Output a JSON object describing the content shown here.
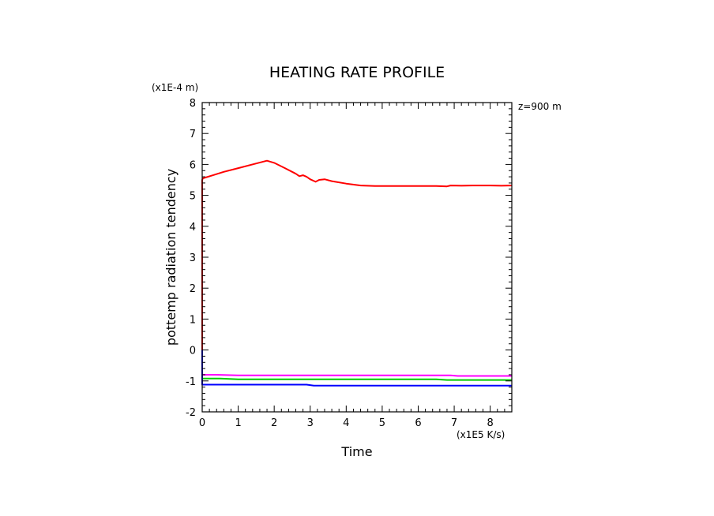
{
  "chart_data": {
    "type": "line",
    "title": "HEATING RATE PROFILE",
    "xlabel": "Time",
    "ylabel": "pottemp radiation tendency",
    "x_unit_label": "(x1E5 K/s)",
    "y_unit_label": "(x1E-4 m)",
    "annotation": "z=900 m",
    "xlim": [
      0,
      8.6
    ],
    "ylim": [
      -2,
      8
    ],
    "xticks": [
      0,
      1,
      2,
      3,
      4,
      5,
      6,
      7,
      8
    ],
    "yticks": [
      -2,
      -1,
      0,
      1,
      2,
      3,
      4,
      5,
      6,
      7,
      8
    ],
    "series": [
      {
        "name": "red",
        "color": "#ff0000",
        "x": [
          0,
          0,
          0.02,
          0.3,
          0.6,
          1.0,
          1.5,
          1.8,
          2.0,
          2.3,
          2.6,
          2.7,
          2.8,
          2.9,
          3.0,
          3.15,
          3.25,
          3.4,
          3.6,
          4.0,
          4.4,
          4.8,
          5.5,
          6.0,
          6.5,
          6.8,
          6.9,
          7.2,
          7.5,
          8.0,
          8.3,
          8.6
        ],
        "y": [
          -0.6,
          5.5,
          5.55,
          5.65,
          5.76,
          5.88,
          6.03,
          6.12,
          6.05,
          5.88,
          5.7,
          5.62,
          5.65,
          5.6,
          5.52,
          5.44,
          5.5,
          5.52,
          5.46,
          5.38,
          5.32,
          5.3,
          5.3,
          5.3,
          5.3,
          5.29,
          5.32,
          5.31,
          5.32,
          5.32,
          5.31,
          5.32
        ]
      },
      {
        "name": "magenta",
        "color": "#ff00ff",
        "x": [
          0,
          0.4,
          1.0,
          2.0,
          3.0,
          4.0,
          5.0,
          6.0,
          6.9,
          7.1,
          8.0,
          8.6
        ],
        "y": [
          -0.8,
          -0.8,
          -0.82,
          -0.82,
          -0.82,
          -0.82,
          -0.82,
          -0.82,
          -0.82,
          -0.84,
          -0.84,
          -0.84
        ]
      },
      {
        "name": "green",
        "color": "#00cc00",
        "x": [
          0,
          0.5,
          1.0,
          2.0,
          3.0,
          4.0,
          5.0,
          6.0,
          6.5,
          6.8,
          7.5,
          8.6
        ],
        "y": [
          -0.92,
          -0.92,
          -0.95,
          -0.95,
          -0.95,
          -0.95,
          -0.95,
          -0.95,
          -0.95,
          -0.97,
          -0.97,
          -0.97
        ]
      },
      {
        "name": "blue",
        "color": "#0000ff",
        "x": [
          0,
          0,
          0.05,
          1.0,
          2.0,
          2.9,
          3.1,
          4.0,
          5.0,
          6.0,
          7.0,
          8.0,
          8.6
        ],
        "y": [
          0,
          -1.12,
          -1.12,
          -1.12,
          -1.12,
          -1.12,
          -1.15,
          -1.15,
          -1.15,
          -1.15,
          -1.15,
          -1.15,
          -1.15
        ]
      }
    ]
  }
}
